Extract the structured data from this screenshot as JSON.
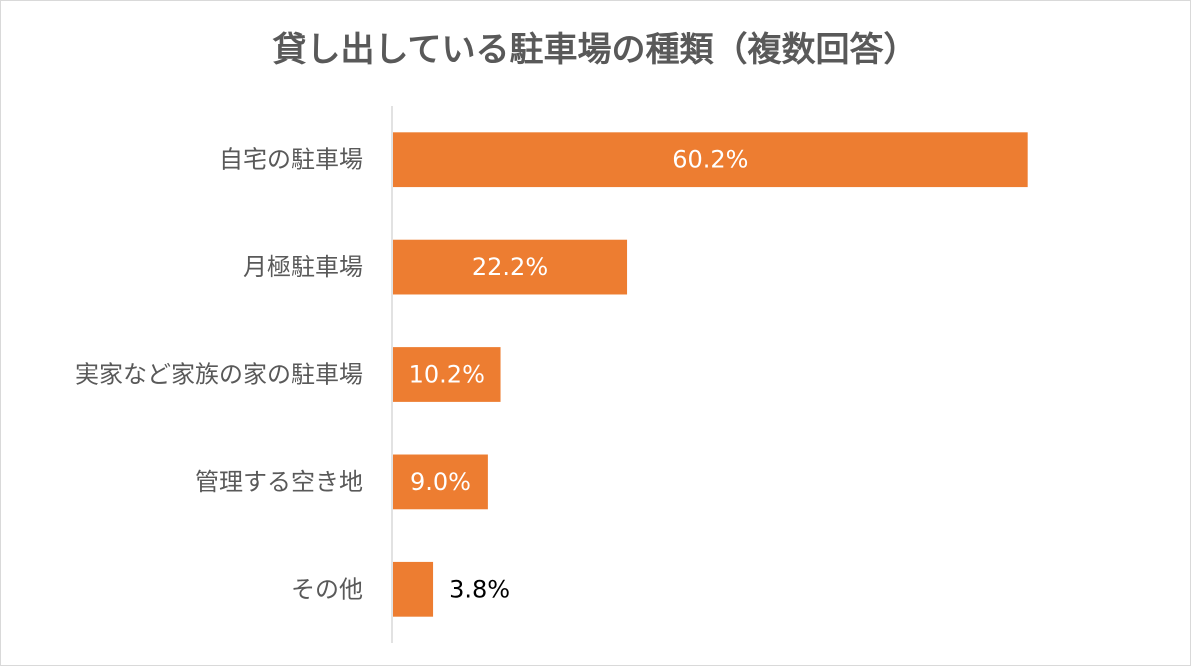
{
  "chart_data": {
    "type": "bar",
    "orientation": "horizontal",
    "title": "貸し出している駐車場の種類（複数回答）",
    "categories": [
      "自宅の駐車場",
      "月極駐車場",
      "実家など家族の家の駐車場",
      "管理する空き地",
      "その他"
    ],
    "values": [
      60.2,
      22.2,
      10.2,
      9.0,
      3.8
    ],
    "data_labels": [
      "60.2%",
      "22.2%",
      "10.2%",
      "9.0%",
      "3.8%"
    ],
    "value_unit": "%",
    "xlim": [
      0,
      70
    ],
    "grid": false,
    "legend": "none",
    "bar_color": "#ED7D31",
    "inside_label_color": "#FFFFFF",
    "outside_label_color": "#000000",
    "axis_color": "#D9D9D9"
  }
}
